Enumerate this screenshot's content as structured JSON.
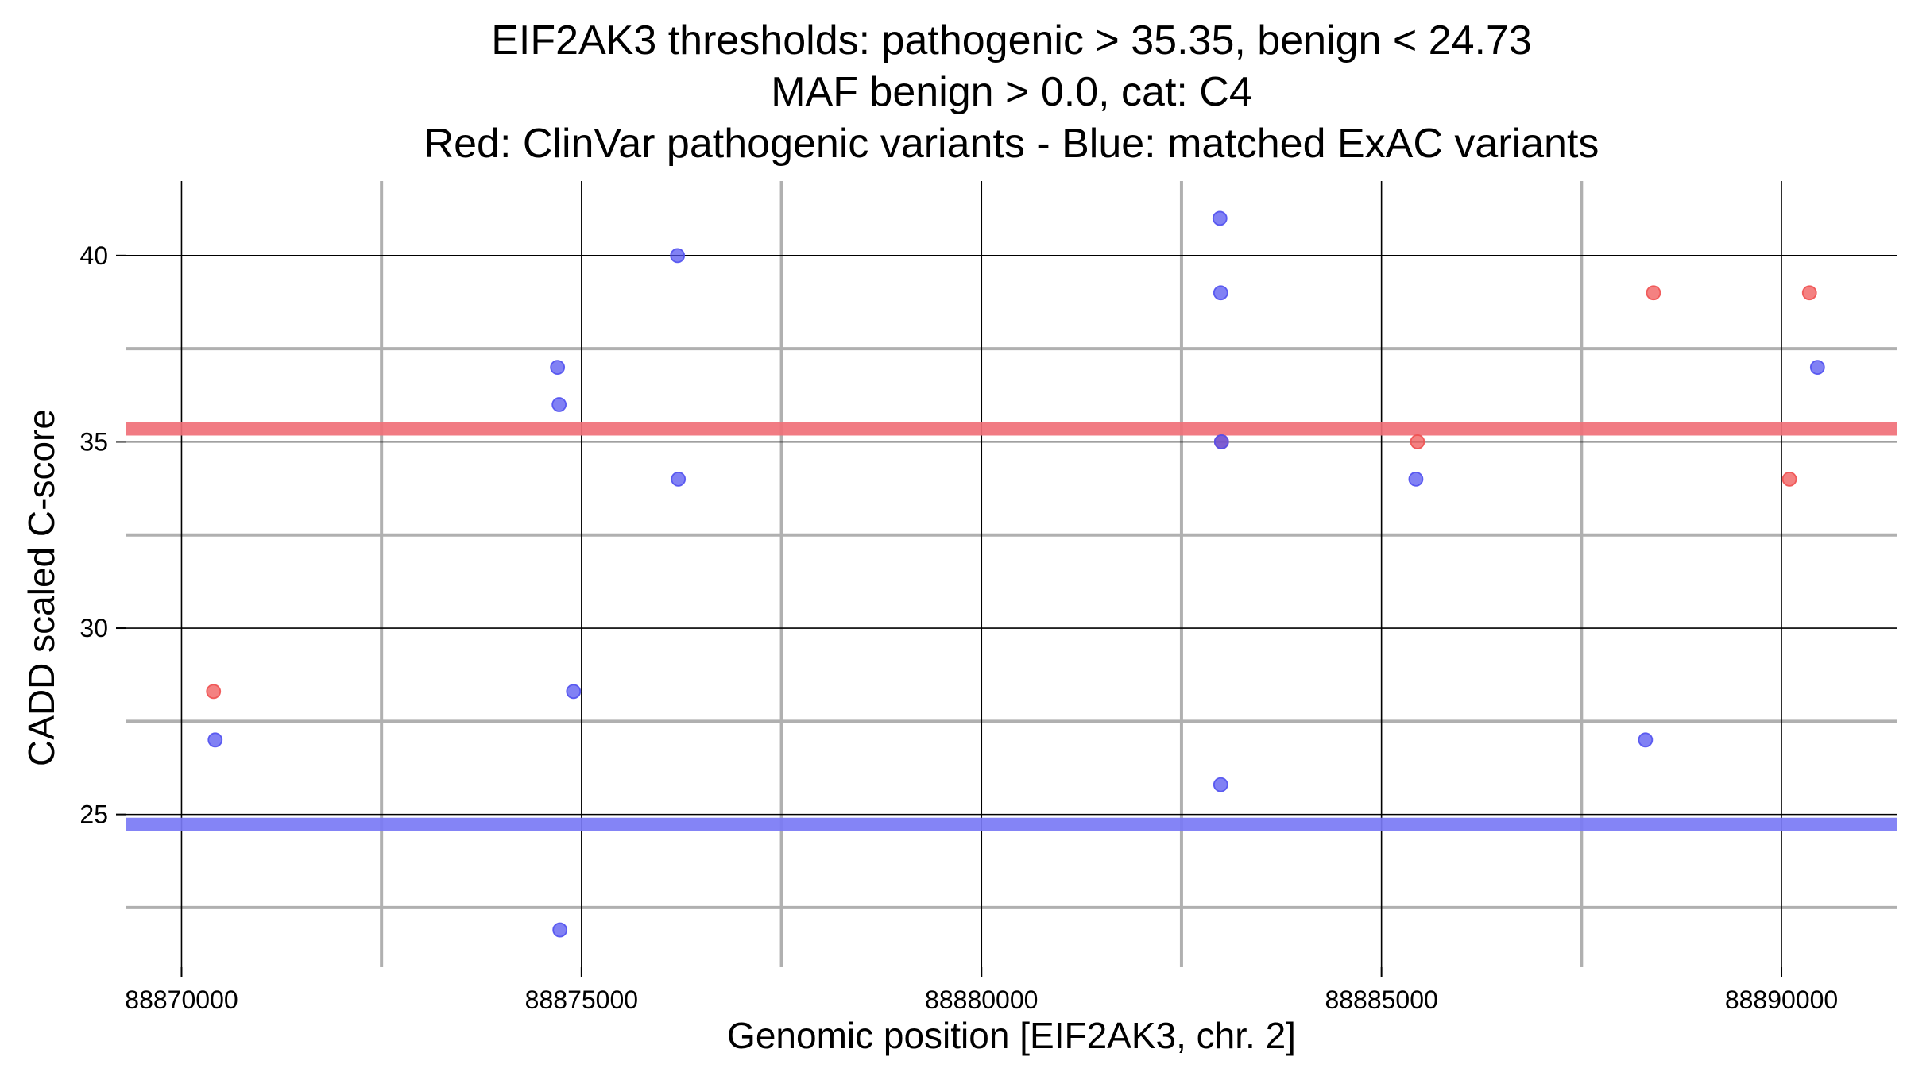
{
  "chart_data": {
    "type": "scatter",
    "title": [
      "EIF2AK3 thresholds: pathogenic > 35.35, benign < 24.73",
      "MAF benign > 0.0, cat: C4",
      "Red: ClinVar pathogenic variants - Blue: matched ExAC variants"
    ],
    "xlabel": "Genomic position [EIF2AK3, chr. 2]",
    "ylabel": "CADD scaled C-score",
    "xlim": [
      88869300,
      88891450
    ],
    "ylim": [
      20.9,
      42.0
    ],
    "x_ticks": [
      88870000,
      88875000,
      88880000,
      88885000,
      88890000
    ],
    "x_minor_ticks": [
      88872500,
      88877500,
      88882500,
      88887500
    ],
    "y_ticks": [
      25,
      30,
      35,
      40
    ],
    "y_minor_ticks": [
      22.5,
      27.5,
      32.5,
      37.5
    ],
    "grid": true,
    "thresholds": [
      {
        "name": "pathogenic",
        "value": 35.35,
        "color": "#f07078"
      },
      {
        "name": "benign",
        "value": 24.73,
        "color": "#7a7af5"
      }
    ],
    "series": [
      {
        "color": "#f05050",
        "points": [
          [
            88870400,
            28.3
          ],
          [
            88883000,
            35.0
          ],
          [
            88885450,
            35.0
          ],
          [
            88888400,
            39.0
          ],
          [
            88890100,
            34.0
          ],
          [
            88890350,
            39.0
          ]
        ]
      },
      {
        "color": "#5050f0",
        "points": [
          [
            88870420,
            27.0
          ],
          [
            88874700,
            37.0
          ],
          [
            88874720,
            36.0
          ],
          [
            88874730,
            21.9
          ],
          [
            88874900,
            28.3
          ],
          [
            88876200,
            40.0
          ],
          [
            88876210,
            34.0
          ],
          [
            88882980,
            41.0
          ],
          [
            88882990,
            39.0
          ],
          [
            88883000,
            35.0
          ],
          [
            88882990,
            25.8
          ],
          [
            88885430,
            34.0
          ],
          [
            88888300,
            27.0
          ],
          [
            88890450,
            37.0
          ]
        ]
      }
    ]
  }
}
